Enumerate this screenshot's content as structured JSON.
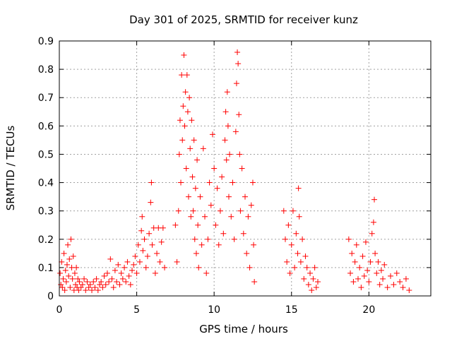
{
  "chart_data": {
    "type": "scatter",
    "title": "Day 301 of 2025, SRMTID for receiver kunz",
    "xlabel": "GPS time / hours",
    "ylabel": "SRMTID / TECUs",
    "xlim": [
      0,
      24
    ],
    "ylim": [
      0,
      0.9
    ],
    "x_ticks": [
      0,
      5,
      10,
      15,
      20
    ],
    "x_tick_labels": [
      "0",
      "5",
      "10",
      "15",
      "20"
    ],
    "y_ticks": [
      0,
      0.1,
      0.2,
      0.3,
      0.4,
      0.5,
      0.6,
      0.7,
      0.8,
      0.9
    ],
    "y_tick_labels": [
      "0",
      "0.1",
      "0.2",
      "0.3",
      "0.4",
      "0.5",
      "0.6",
      "0.7",
      "0.8",
      "0.9"
    ],
    "grid": true,
    "marker": "+",
    "marker_color": "#ff0000",
    "series": [
      {
        "name": "SRMTID",
        "points": [
          [
            0.05,
            0.08
          ],
          [
            0.1,
            0.04
          ],
          [
            0.15,
            0.12
          ],
          [
            0.2,
            0.03
          ],
          [
            0.25,
            0.06
          ],
          [
            0.3,
            0.15
          ],
          [
            0.35,
            0.02
          ],
          [
            0.4,
            0.09
          ],
          [
            0.45,
            0.05
          ],
          [
            0.5,
            0.11
          ],
          [
            0.55,
            0.18
          ],
          [
            0.6,
            0.07
          ],
          [
            0.65,
            0.13
          ],
          [
            0.7,
            0.03
          ],
          [
            0.75,
            0.2
          ],
          [
            0.8,
            0.1
          ],
          [
            0.85,
            0.06
          ],
          [
            0.9,
            0.14
          ],
          [
            0.95,
            0.02
          ],
          [
            1.0,
            0.08
          ],
          [
            1.05,
            0.04
          ],
          [
            1.1,
            0.1
          ],
          [
            1.15,
            0.03
          ],
          [
            1.2,
            0.06
          ],
          [
            1.25,
            0.02
          ],
          [
            1.3,
            0.05
          ],
          [
            1.4,
            0.03
          ],
          [
            1.5,
            0.04
          ],
          [
            1.6,
            0.06
          ],
          [
            1.7,
            0.02
          ],
          [
            1.8,
            0.05
          ],
          [
            1.9,
            0.03
          ],
          [
            2.0,
            0.04
          ],
          [
            2.1,
            0.02
          ],
          [
            2.2,
            0.05
          ],
          [
            2.3,
            0.03
          ],
          [
            2.4,
            0.06
          ],
          [
            2.5,
            0.02
          ],
          [
            2.6,
            0.04
          ],
          [
            2.7,
            0.05
          ],
          [
            2.8,
            0.03
          ],
          [
            2.9,
            0.07
          ],
          [
            3.0,
            0.04
          ],
          [
            3.1,
            0.08
          ],
          [
            3.2,
            0.05
          ],
          [
            3.3,
            0.13
          ],
          [
            3.4,
            0.06
          ],
          [
            3.5,
            0.03
          ],
          [
            3.6,
            0.09
          ],
          [
            3.7,
            0.05
          ],
          [
            3.8,
            0.11
          ],
          [
            3.9,
            0.04
          ],
          [
            4.0,
            0.08
          ],
          [
            4.1,
            0.06
          ],
          [
            4.2,
            0.1
          ],
          [
            4.3,
            0.05
          ],
          [
            4.4,
            0.12
          ],
          [
            4.5,
            0.07
          ],
          [
            4.6,
            0.04
          ],
          [
            4.7,
            0.09
          ],
          [
            4.8,
            0.11
          ],
          [
            4.9,
            0.14
          ],
          [
            5.0,
            0.08
          ],
          [
            5.1,
            0.18
          ],
          [
            5.2,
            0.12
          ],
          [
            5.3,
            0.23
          ],
          [
            5.35,
            0.28
          ],
          [
            5.4,
            0.16
          ],
          [
            5.5,
            0.2
          ],
          [
            5.6,
            0.1
          ],
          [
            5.7,
            0.14
          ],
          [
            5.8,
            0.22
          ],
          [
            5.9,
            0.33
          ],
          [
            5.95,
            0.4
          ],
          [
            6.0,
            0.18
          ],
          [
            6.1,
            0.24
          ],
          [
            6.2,
            0.08
          ],
          [
            6.3,
            0.15
          ],
          [
            6.4,
            0.24
          ],
          [
            6.5,
            0.12
          ],
          [
            6.6,
            0.19
          ],
          [
            6.7,
            0.24
          ],
          [
            6.8,
            0.1
          ],
          [
            7.5,
            0.25
          ],
          [
            7.6,
            0.12
          ],
          [
            7.7,
            0.3
          ],
          [
            7.75,
            0.5
          ],
          [
            7.8,
            0.62
          ],
          [
            7.85,
            0.4
          ],
          [
            7.9,
            0.78
          ],
          [
            7.95,
            0.55
          ],
          [
            8.0,
            0.67
          ],
          [
            8.05,
            0.85
          ],
          [
            8.1,
            0.6
          ],
          [
            8.15,
            0.72
          ],
          [
            8.2,
            0.45
          ],
          [
            8.25,
            0.78
          ],
          [
            8.3,
            0.65
          ],
          [
            8.35,
            0.35
          ],
          [
            8.4,
            0.7
          ],
          [
            8.45,
            0.52
          ],
          [
            8.5,
            0.28
          ],
          [
            8.55,
            0.62
          ],
          [
            8.6,
            0.42
          ],
          [
            8.65,
            0.3
          ],
          [
            8.7,
            0.55
          ],
          [
            8.75,
            0.2
          ],
          [
            8.8,
            0.38
          ],
          [
            8.85,
            0.15
          ],
          [
            8.9,
            0.48
          ],
          [
            8.95,
            0.25
          ],
          [
            9.0,
            0.1
          ],
          [
            9.1,
            0.35
          ],
          [
            9.2,
            0.18
          ],
          [
            9.3,
            0.52
          ],
          [
            9.4,
            0.28
          ],
          [
            9.5,
            0.08
          ],
          [
            9.6,
            0.2
          ],
          [
            9.7,
            0.4
          ],
          [
            9.8,
            0.32
          ],
          [
            9.9,
            0.57
          ],
          [
            10.0,
            0.45
          ],
          [
            10.1,
            0.25
          ],
          [
            10.2,
            0.38
          ],
          [
            10.3,
            0.18
          ],
          [
            10.4,
            0.3
          ],
          [
            10.5,
            0.42
          ],
          [
            10.6,
            0.22
          ],
          [
            10.7,
            0.55
          ],
          [
            10.75,
            0.65
          ],
          [
            10.8,
            0.48
          ],
          [
            10.85,
            0.72
          ],
          [
            10.9,
            0.6
          ],
          [
            10.95,
            0.35
          ],
          [
            11.0,
            0.5
          ],
          [
            11.1,
            0.28
          ],
          [
            11.2,
            0.4
          ],
          [
            11.3,
            0.2
          ],
          [
            11.4,
            0.58
          ],
          [
            11.45,
            0.75
          ],
          [
            11.5,
            0.86
          ],
          [
            11.55,
            0.82
          ],
          [
            11.6,
            0.64
          ],
          [
            11.65,
            0.5
          ],
          [
            11.7,
            0.3
          ],
          [
            11.8,
            0.45
          ],
          [
            11.9,
            0.22
          ],
          [
            12.0,
            0.35
          ],
          [
            12.1,
            0.15
          ],
          [
            12.2,
            0.28
          ],
          [
            12.3,
            0.1
          ],
          [
            12.4,
            0.32
          ],
          [
            12.5,
            0.4
          ],
          [
            12.55,
            0.18
          ],
          [
            12.6,
            0.05
          ],
          [
            14.5,
            0.3
          ],
          [
            14.6,
            0.2
          ],
          [
            14.7,
            0.12
          ],
          [
            14.8,
            0.25
          ],
          [
            14.9,
            0.08
          ],
          [
            15.0,
            0.18
          ],
          [
            15.1,
            0.3
          ],
          [
            15.2,
            0.1
          ],
          [
            15.3,
            0.22
          ],
          [
            15.4,
            0.15
          ],
          [
            15.45,
            0.38
          ],
          [
            15.5,
            0.28
          ],
          [
            15.6,
            0.12
          ],
          [
            15.7,
            0.2
          ],
          [
            15.8,
            0.06
          ],
          [
            15.9,
            0.14
          ],
          [
            16.0,
            0.1
          ],
          [
            16.1,
            0.04
          ],
          [
            16.2,
            0.08
          ],
          [
            16.3,
            0.02
          ],
          [
            16.4,
            0.06
          ],
          [
            16.5,
            0.1
          ],
          [
            16.6,
            0.03
          ],
          [
            16.7,
            0.05
          ],
          [
            18.7,
            0.2
          ],
          [
            18.8,
            0.08
          ],
          [
            18.9,
            0.15
          ],
          [
            19.0,
            0.05
          ],
          [
            19.1,
            0.12
          ],
          [
            19.2,
            0.18
          ],
          [
            19.3,
            0.06
          ],
          [
            19.4,
            0.1
          ],
          [
            19.5,
            0.03
          ],
          [
            19.6,
            0.14
          ],
          [
            19.7,
            0.07
          ],
          [
            19.8,
            0.19
          ],
          [
            19.9,
            0.09
          ],
          [
            20.0,
            0.05
          ],
          [
            20.1,
            0.12
          ],
          [
            20.2,
            0.22
          ],
          [
            20.3,
            0.26
          ],
          [
            20.35,
            0.34
          ],
          [
            20.4,
            0.15
          ],
          [
            20.5,
            0.08
          ],
          [
            20.6,
            0.12
          ],
          [
            20.7,
            0.04
          ],
          [
            20.8,
            0.09
          ],
          [
            20.9,
            0.06
          ],
          [
            21.0,
            0.11
          ],
          [
            21.2,
            0.03
          ],
          [
            21.4,
            0.07
          ],
          [
            21.6,
            0.04
          ],
          [
            21.8,
            0.08
          ],
          [
            22.0,
            0.05
          ],
          [
            22.2,
            0.03
          ],
          [
            22.4,
            0.06
          ],
          [
            22.6,
            0.02
          ]
        ]
      }
    ]
  }
}
